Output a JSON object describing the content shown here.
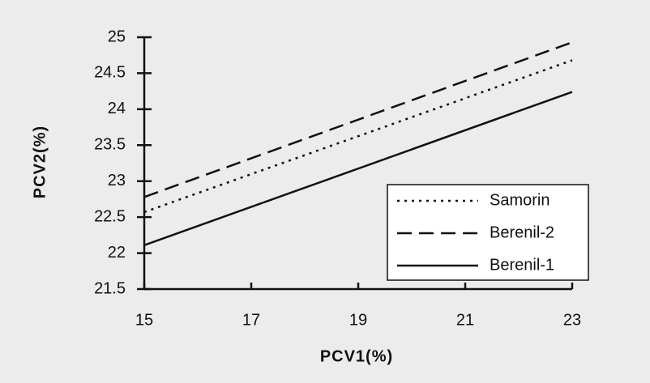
{
  "chart_data": {
    "type": "line",
    "x_label": "PCV1(%)",
    "y_label": "PCV2(%)",
    "x": [
      15,
      23
    ],
    "series": [
      {
        "name": "Samorin",
        "color": "#111111",
        "style": "dotted",
        "values": [
          22.57,
          24.68
        ]
      },
      {
        "name": "Berenil-2",
        "color": "#111111",
        "style": "dashed",
        "values": [
          22.78,
          24.93
        ]
      },
      {
        "name": "Berenil-1",
        "color": "#111111",
        "style": "solid",
        "values": [
          22.11,
          24.24
        ]
      }
    ],
    "xlim": [
      15,
      23
    ],
    "xticks": [
      15,
      17,
      19,
      21,
      23
    ],
    "ylim": [
      21.5,
      25
    ],
    "yticks": [
      21.5,
      22,
      22.5,
      23,
      23.5,
      24,
      24.5,
      25
    ],
    "grid": false,
    "legend_position": "lower-right"
  }
}
